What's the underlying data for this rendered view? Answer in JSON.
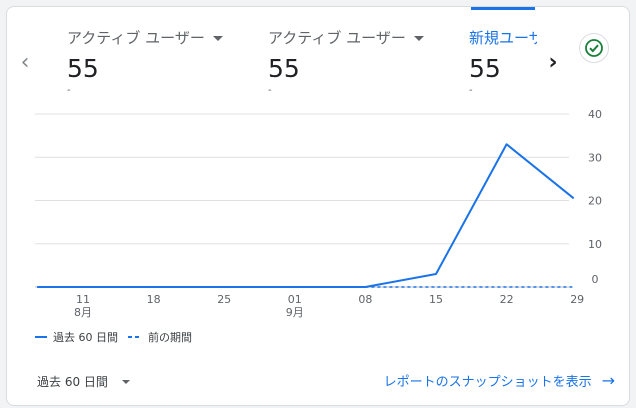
{
  "metrics": [
    {
      "label": "アクティブ ユーザー",
      "value": "55",
      "sub": "-"
    },
    {
      "label": "アクティブ ユーザー",
      "value": "55",
      "sub": "-"
    },
    {
      "label": "新規ユーザ",
      "value": "55",
      "sub": "-"
    }
  ],
  "nav": {
    "prev": "‹",
    "next": "›"
  },
  "chart_data": {
    "type": "line",
    "x_ticks": [
      {
        "label": "11",
        "sub": "8月"
      },
      {
        "label": "18",
        "sub": ""
      },
      {
        "label": "25",
        "sub": ""
      },
      {
        "label": "01",
        "sub": "9月"
      },
      {
        "label": "08",
        "sub": ""
      },
      {
        "label": "15",
        "sub": ""
      },
      {
        "label": "22",
        "sub": ""
      },
      {
        "label": "29",
        "sub": ""
      }
    ],
    "y_ticks": [
      "0",
      "10",
      "20",
      "30",
      "40"
    ],
    "ylim": [
      0,
      40
    ],
    "series": [
      {
        "name": "過去 60 日間",
        "style": "solid",
        "points": [
          [
            -0.65,
            0
          ],
          [
            0,
            0
          ],
          [
            1,
            0
          ],
          [
            2,
            0
          ],
          [
            3,
            0
          ],
          [
            4,
            0
          ],
          [
            5,
            3
          ],
          [
            6,
            33
          ],
          [
            6.95,
            20.5
          ]
        ]
      },
      {
        "name": "前の期間",
        "style": "dashed",
        "points": [
          [
            4,
            0
          ],
          [
            6.95,
            0
          ]
        ]
      }
    ],
    "colors": {
      "series": "#1a73e8",
      "grid": "#e0e0e0"
    }
  },
  "legend": {
    "current": "過去 60 日間",
    "previous": "前の期間"
  },
  "footer": {
    "period": "過去 60 日間",
    "report_link": "レポートのスナップショットを表示"
  }
}
